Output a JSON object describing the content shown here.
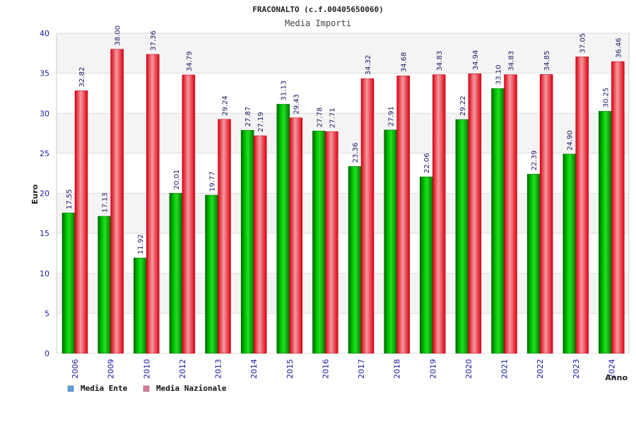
{
  "chart_data": {
    "type": "bar",
    "title": "FRACONALTO (c.f.00405650060)",
    "subtitle": "Media Importi",
    "xlabel": "Anno",
    "ylabel": "Euro",
    "ylim": [
      0,
      40
    ],
    "yticks": [
      0,
      5,
      10,
      15,
      20,
      25,
      30,
      35,
      40
    ],
    "grid": true,
    "legend_position": "bottom-left",
    "categories": [
      "2006",
      "2009",
      "2010",
      "2012",
      "2013",
      "2014",
      "2015",
      "2016",
      "2017",
      "2018",
      "2019",
      "2020",
      "2021",
      "2022",
      "2023",
      "2024"
    ],
    "series": [
      {
        "name": "Media Ente",
        "color": "#00aa00",
        "values": [
          17.55,
          17.13,
          11.92,
          20.01,
          19.77,
          27.87,
          31.13,
          27.78,
          23.36,
          27.91,
          22.06,
          29.22,
          33.1,
          22.39,
          24.9,
          30.25
        ],
        "labels": [
          "17.55",
          "17.13",
          "11.92",
          "20.01",
          "19.77",
          "27.87",
          "31.13",
          "27.78",
          "23.36",
          "27.91",
          "22.06",
          "29.22",
          "33.10",
          "22.39",
          "24.90",
          "30.25"
        ]
      },
      {
        "name": "Media Nazionale",
        "color": "#ee1c2a",
        "values": [
          32.82,
          38.0,
          37.36,
          34.79,
          29.24,
          27.19,
          29.43,
          27.71,
          34.32,
          34.68,
          34.83,
          34.94,
          34.83,
          34.85,
          37.05,
          36.46
        ],
        "labels": [
          "32.82",
          "38.00",
          "37.36",
          "34.79",
          "29.24",
          "27.19",
          "29.43",
          "27.71",
          "34.32",
          "34.68",
          "34.83",
          "34.94",
          "34.83",
          "34.85",
          "37.05",
          "36.46"
        ]
      }
    ],
    "legend": [
      {
        "label": "Media Ente",
        "color": "#5aa0e6"
      },
      {
        "label": "Media Nazionale",
        "color": "#e07aa0"
      }
    ]
  }
}
